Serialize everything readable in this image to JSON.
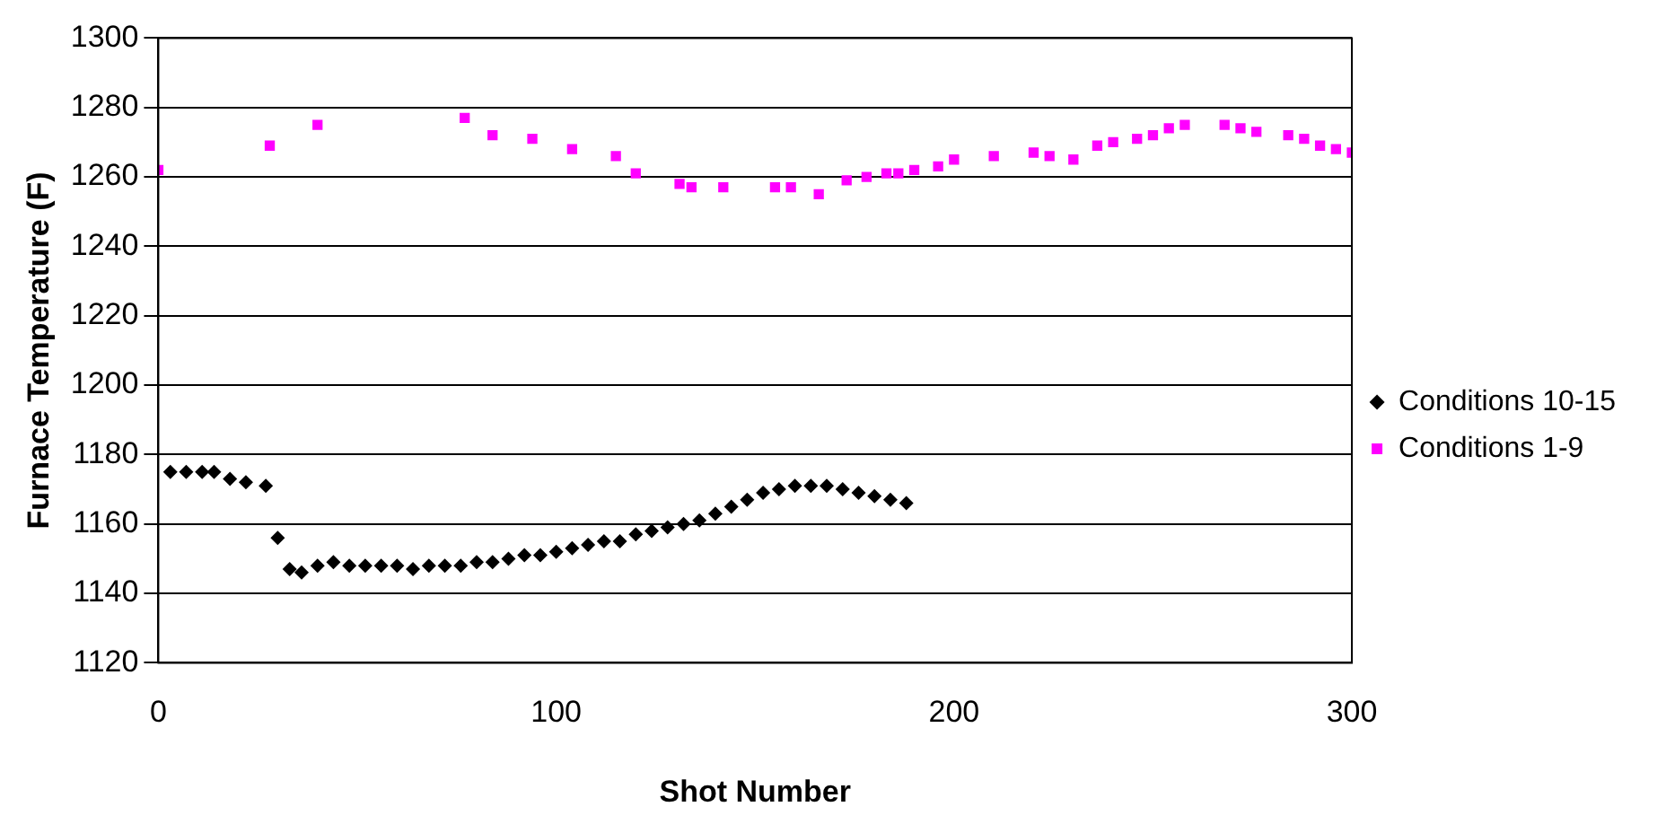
{
  "chart_data": {
    "type": "scatter",
    "xlabel": "Shot Number",
    "ylabel": "Furnace Temperature (F)",
    "xlim": [
      0,
      300
    ],
    "xticks": [
      0,
      100,
      200,
      300
    ],
    "ylim": [
      1120,
      1300
    ],
    "yticks": [
      1120,
      1140,
      1160,
      1180,
      1200,
      1220,
      1240,
      1260,
      1280,
      1300
    ],
    "grid": "y",
    "legend": "right",
    "series": [
      {
        "name": "Conditions 10-15",
        "color": "#000000",
        "marker": "diamond",
        "x": [
          3,
          7,
          11,
          14,
          18,
          22,
          27,
          30,
          33,
          36,
          40,
          44,
          48,
          52,
          56,
          60,
          64,
          68,
          72,
          76,
          80,
          84,
          88,
          92,
          96,
          100,
          104,
          108,
          112,
          116,
          120,
          124,
          128,
          132,
          136,
          140,
          144,
          148,
          152,
          156,
          160,
          164,
          168,
          172,
          176,
          180,
          184,
          188
        ],
        "values": [
          1175,
          1175,
          1175,
          1175,
          1173,
          1172,
          1171,
          1156,
          1147,
          1146,
          1148,
          1149,
          1148,
          1148,
          1148,
          1148,
          1147,
          1148,
          1148,
          1148,
          1149,
          1149,
          1150,
          1151,
          1151,
          1152,
          1153,
          1154,
          1155,
          1155,
          1157,
          1158,
          1159,
          1160,
          1161,
          1163,
          1165,
          1167,
          1169,
          1170,
          1171,
          1171,
          1171,
          1170,
          1169,
          1168,
          1167,
          1166
        ]
      },
      {
        "name": "Conditions 1-9",
        "color": "#ff00ff",
        "marker": "square",
        "x": [
          0,
          28,
          40,
          77,
          84,
          94,
          104,
          115,
          120,
          131,
          134,
          142,
          155,
          159,
          166,
          173,
          178,
          183,
          186,
          190,
          196,
          200,
          210,
          220,
          224,
          230,
          236,
          240,
          246,
          250,
          254,
          258,
          268,
          272,
          276,
          284,
          288,
          292,
          296,
          300
        ],
        "values": [
          1262,
          1269,
          1275,
          1277,
          1272,
          1271,
          1268,
          1266,
          1261,
          1258,
          1257,
          1257,
          1257,
          1257,
          1255,
          1259,
          1260,
          1261,
          1261,
          1262,
          1263,
          1265,
          1266,
          1267,
          1266,
          1265,
          1269,
          1270,
          1271,
          1272,
          1274,
          1275,
          1275,
          1274,
          1273,
          1272,
          1271,
          1269,
          1268,
          1267
        ]
      }
    ]
  }
}
